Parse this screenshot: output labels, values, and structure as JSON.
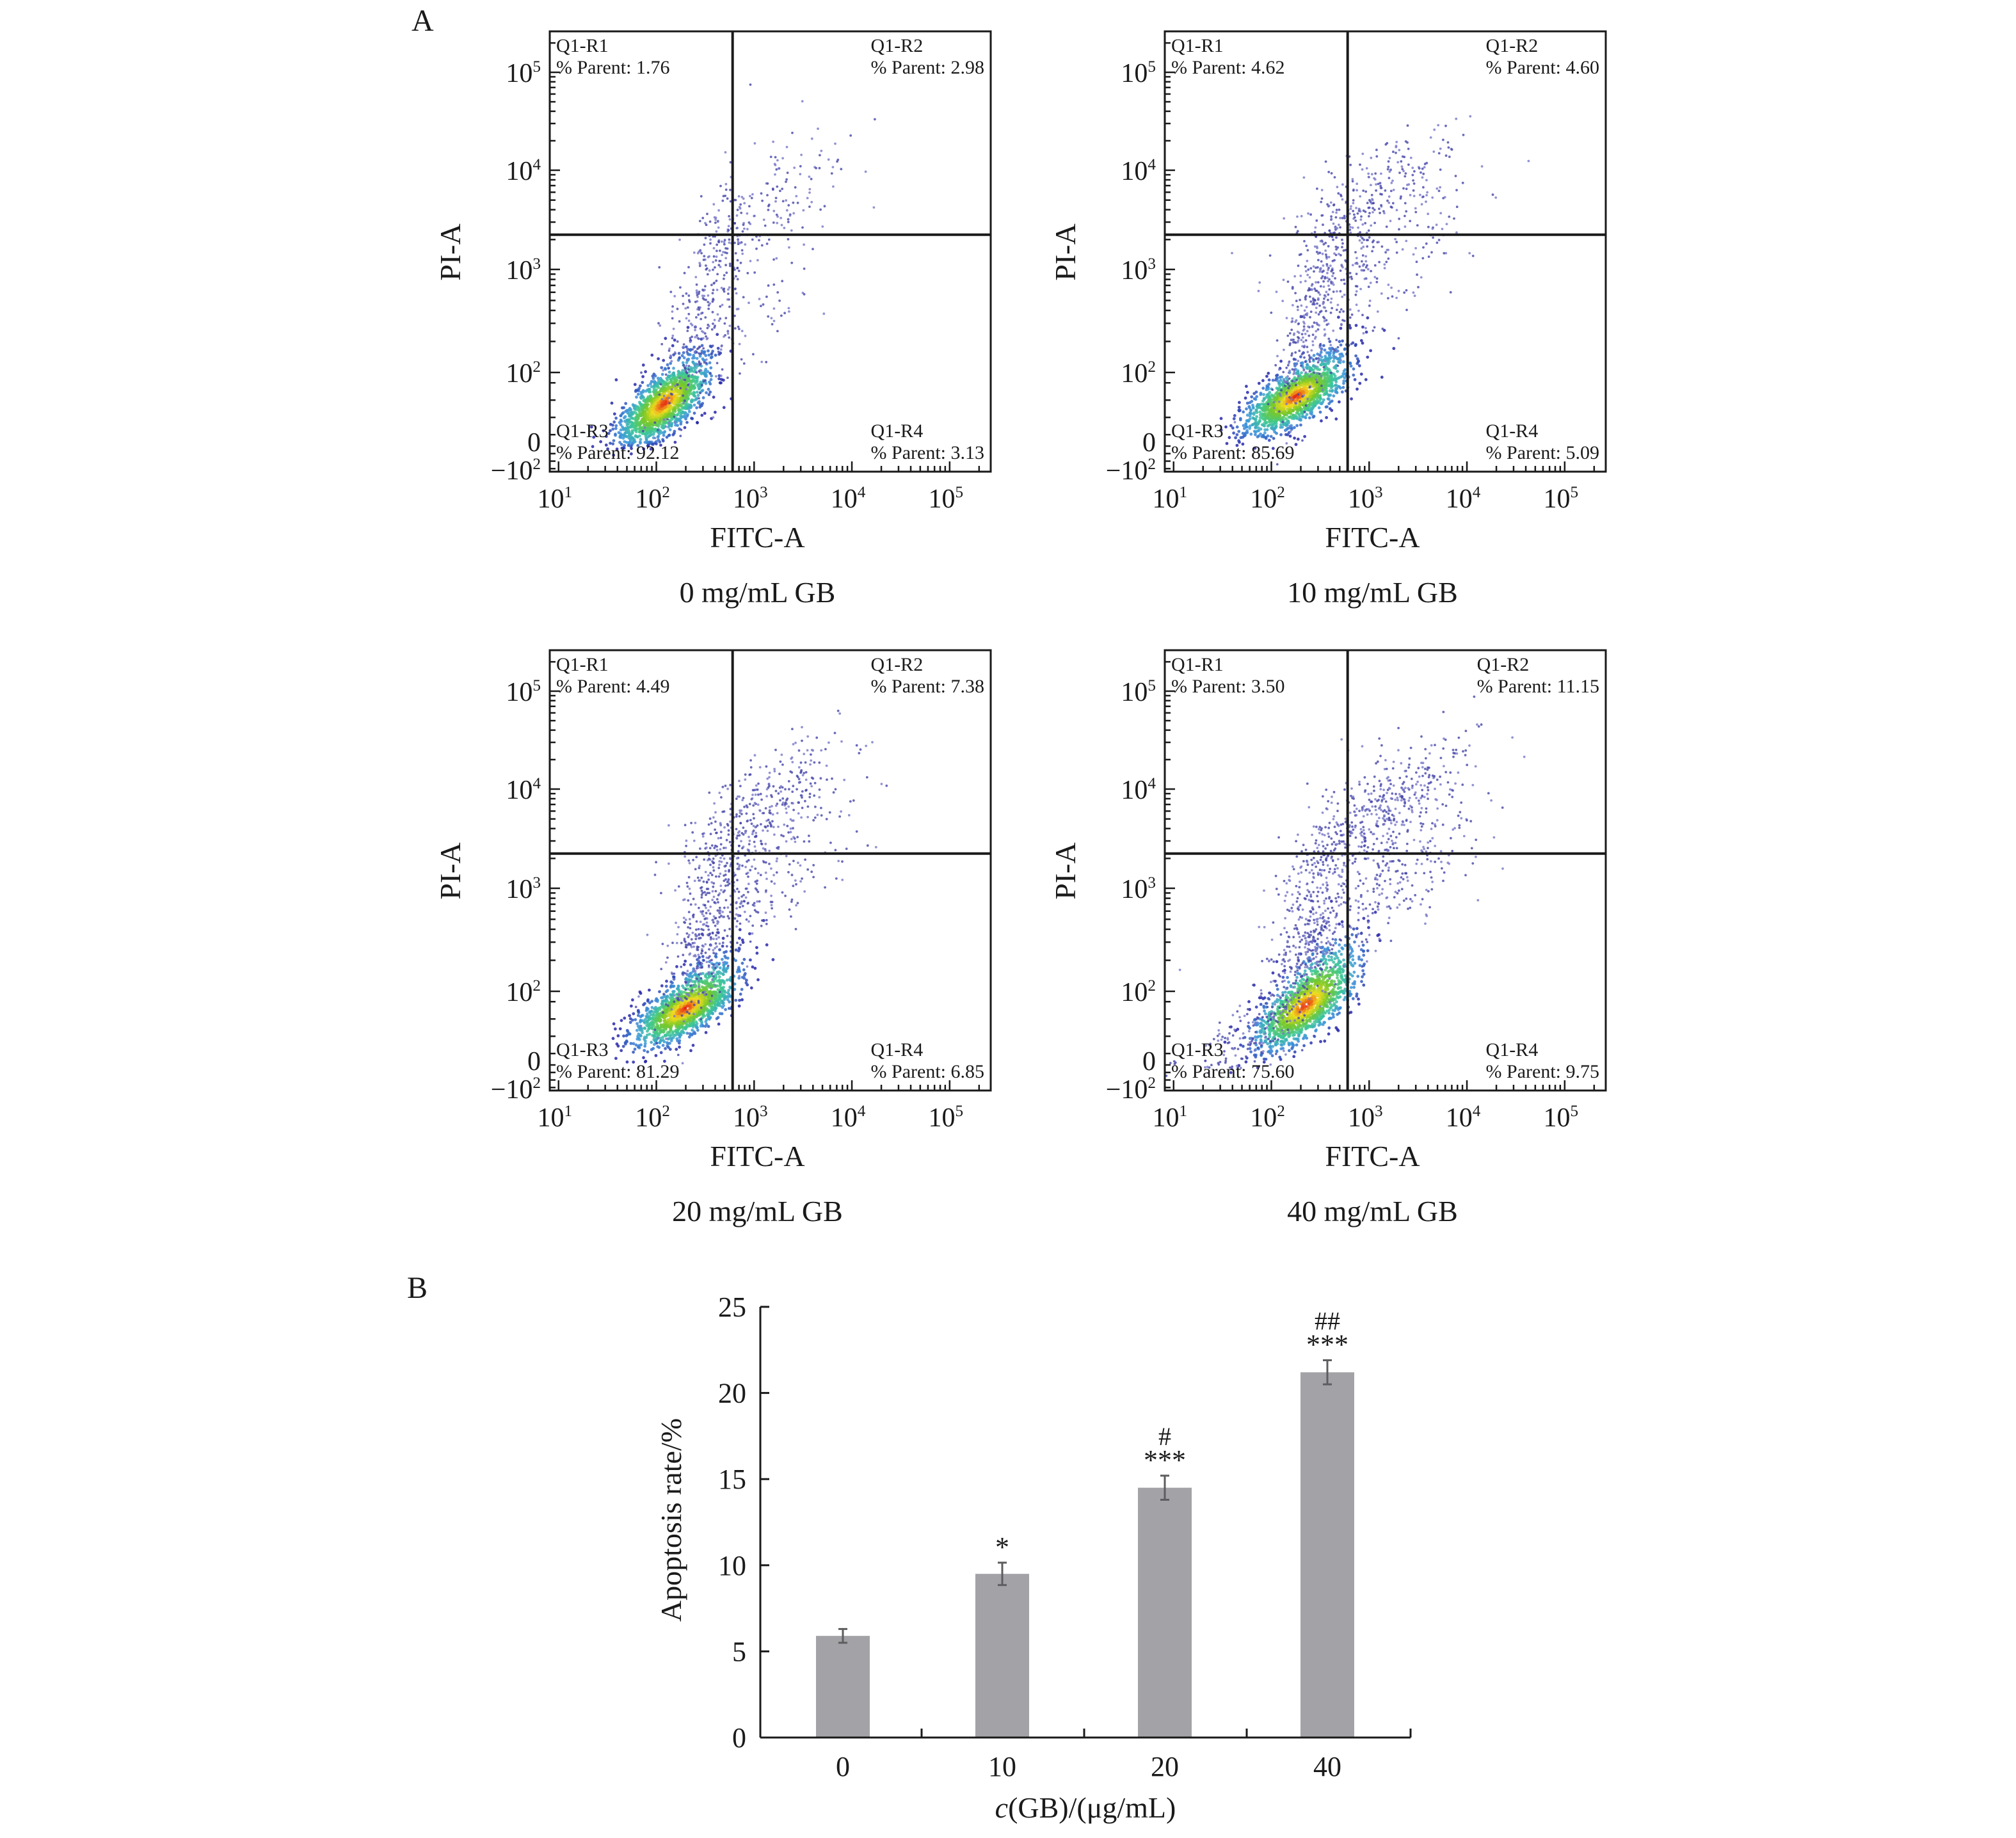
{
  "panel_labels": {
    "a": "A",
    "b": "B"
  },
  "chart_data": [
    {
      "type": "scatter",
      "subtype": "flow-cytometry-quadrant",
      "title": "0 mg/mL GB",
      "xlabel": "FITC-A",
      "ylabel": "PI-A",
      "x_ticks": [
        "10^1",
        "10^2",
        "10^3",
        "10^4",
        "10^5"
      ],
      "y_ticks": [
        "−10^2",
        "0",
        "10^2",
        "10^3",
        "10^4",
        "10^5"
      ],
      "x_gate_log10": 2.78,
      "y_gate_log10": 3.35,
      "quadrants": [
        {
          "name": "Q1-R1",
          "label": "% Parent: 1.76",
          "value": 1.76
        },
        {
          "name": "Q1-R2",
          "label": "% Parent: 2.98",
          "value": 2.98
        },
        {
          "name": "Q1-R3",
          "label": "% Parent: 92.12",
          "value": 92.12
        },
        {
          "name": "Q1-R4",
          "label": "% Parent: 3.13",
          "value": 3.13
        }
      ],
      "populations": [
        {
          "center_log": [
            2.08,
            1.55
          ],
          "spread": [
            0.22,
            0.28
          ],
          "count": 1500,
          "dense": true
        },
        {
          "center_log": [
            2.5,
            2.6
          ],
          "spread": [
            0.22,
            0.55
          ],
          "count": 320,
          "dense": false
        },
        {
          "center_log": [
            3.15,
            3.6
          ],
          "spread": [
            0.4,
            0.35
          ],
          "count": 170,
          "dense": false
        },
        {
          "center_log": [
            3.0,
            2.5
          ],
          "spread": [
            0.35,
            0.35
          ],
          "count": 60,
          "dense": false
        }
      ]
    },
    {
      "type": "scatter",
      "subtype": "flow-cytometry-quadrant",
      "title": "10 mg/mL GB",
      "xlabel": "FITC-A",
      "ylabel": "PI-A",
      "x_ticks": [
        "10^1",
        "10^2",
        "10^3",
        "10^4",
        "10^5"
      ],
      "y_ticks": [
        "−10^2",
        "0",
        "10^2",
        "10^3",
        "10^4",
        "10^5"
      ],
      "x_gate_log10": 2.78,
      "y_gate_log10": 3.35,
      "quadrants": [
        {
          "name": "Q1-R1",
          "label": "% Parent: 4.62",
          "value": 4.62
        },
        {
          "name": "Q1-R2",
          "label": "% Parent: 4.60",
          "value": 4.6
        },
        {
          "name": "Q1-R3",
          "label": "% Parent: 85.69",
          "value": 85.69
        },
        {
          "name": "Q1-R4",
          "label": "% Parent: 5.09",
          "value": 5.09
        }
      ],
      "populations": [
        {
          "center_log": [
            2.25,
            1.65
          ],
          "spread": [
            0.25,
            0.25
          ],
          "count": 1500,
          "dense": true
        },
        {
          "center_log": [
            2.45,
            2.55
          ],
          "spread": [
            0.2,
            0.5
          ],
          "count": 380,
          "dense": false
        },
        {
          "center_log": [
            3.0,
            3.7
          ],
          "spread": [
            0.4,
            0.35
          ],
          "count": 300,
          "dense": false
        },
        {
          "center_log": [
            3.2,
            3.0
          ],
          "spread": [
            0.4,
            0.35
          ],
          "count": 140,
          "dense": false
        }
      ]
    },
    {
      "type": "scatter",
      "subtype": "flow-cytometry-quadrant",
      "title": "20 mg/mL GB",
      "xlabel": "FITC-A",
      "ylabel": "PI-A",
      "x_ticks": [
        "10^1",
        "10^2",
        "10^3",
        "10^4",
        "10^5"
      ],
      "y_ticks": [
        "−10^2",
        "0",
        "10^2",
        "10^3",
        "10^4",
        "10^5"
      ],
      "x_gate_log10": 2.78,
      "y_gate_log10": 3.35,
      "quadrants": [
        {
          "name": "Q1-R1",
          "label": "% Parent: 4.49",
          "value": 4.49
        },
        {
          "name": "Q1-R2",
          "label": "% Parent: 7.38",
          "value": 7.38
        },
        {
          "name": "Q1-R3",
          "label": "% Parent: 81.29",
          "value": 81.29
        },
        {
          "name": "Q1-R4",
          "label": "% Parent: 6.85",
          "value": 6.85
        }
      ],
      "populations": [
        {
          "center_log": [
            2.3,
            1.75
          ],
          "spread": [
            0.25,
            0.25
          ],
          "count": 1500,
          "dense": true
        },
        {
          "center_log": [
            2.5,
            2.6
          ],
          "spread": [
            0.2,
            0.5
          ],
          "count": 380,
          "dense": false
        },
        {
          "center_log": [
            3.05,
            3.75
          ],
          "spread": [
            0.42,
            0.35
          ],
          "count": 380,
          "dense": false
        },
        {
          "center_log": [
            3.1,
            3.0
          ],
          "spread": [
            0.4,
            0.35
          ],
          "count": 170,
          "dense": false
        }
      ]
    },
    {
      "type": "scatter",
      "subtype": "flow-cytometry-quadrant",
      "title": "40 mg/mL GB",
      "xlabel": "FITC-A",
      "ylabel": "PI-A",
      "x_ticks": [
        "10^1",
        "10^2",
        "10^3",
        "10^4",
        "10^5"
      ],
      "y_ticks": [
        "−10^2",
        "0",
        "10^2",
        "10^3",
        "10^4",
        "10^5"
      ],
      "x_gate_log10": 2.78,
      "y_gate_log10": 3.35,
      "quadrants": [
        {
          "name": "Q1-R1",
          "label": "% Parent: 3.50",
          "value": 3.5
        },
        {
          "name": "Q1-R2",
          "label": "% Parent: 11.15",
          "value": 11.15
        },
        {
          "name": "Q1-R3",
          "label": "% Parent: 75.60",
          "value": 75.6
        },
        {
          "name": "Q1-R4",
          "label": "% Parent: 9.75",
          "value": 9.75
        }
      ],
      "populations": [
        {
          "center_log": [
            2.35,
            1.8
          ],
          "spread": [
            0.25,
            0.3
          ],
          "count": 1400,
          "dense": true
        },
        {
          "center_log": [
            2.35,
            2.5
          ],
          "spread": [
            0.22,
            0.5
          ],
          "count": 420,
          "dense": false
        },
        {
          "center_log": [
            3.1,
            3.75
          ],
          "spread": [
            0.42,
            0.33
          ],
          "count": 480,
          "dense": false
        },
        {
          "center_log": [
            3.2,
            3.0
          ],
          "spread": [
            0.45,
            0.35
          ],
          "count": 240,
          "dense": false
        },
        {
          "center_log": [
            1.75,
            1.3
          ],
          "spread": [
            0.3,
            0.3
          ],
          "count": 120,
          "dense": false
        }
      ]
    },
    {
      "type": "bar",
      "title": "",
      "xlabel_italic": "c",
      "xlabel_rest": "(GB)/(μg/mL)",
      "ylabel": "Apoptosis rate/%",
      "categories": [
        "0",
        "10",
        "20",
        "40"
      ],
      "values": [
        5.9,
        9.5,
        14.5,
        21.2
      ],
      "errors": [
        0.4,
        0.65,
        0.7,
        0.7
      ],
      "annotations": [
        {
          "stars": "",
          "hash": ""
        },
        {
          "stars": "*",
          "hash": ""
        },
        {
          "stars": "***",
          "hash": "#"
        },
        {
          "stars": "***",
          "hash": "##"
        }
      ],
      "ylim": [
        0,
        25
      ],
      "y_ticks": [
        "0",
        "5",
        "10",
        "15",
        "20",
        "25"
      ],
      "grid": false,
      "bar_color": "#a3a2a6",
      "error_color": "#5d5d60"
    }
  ]
}
